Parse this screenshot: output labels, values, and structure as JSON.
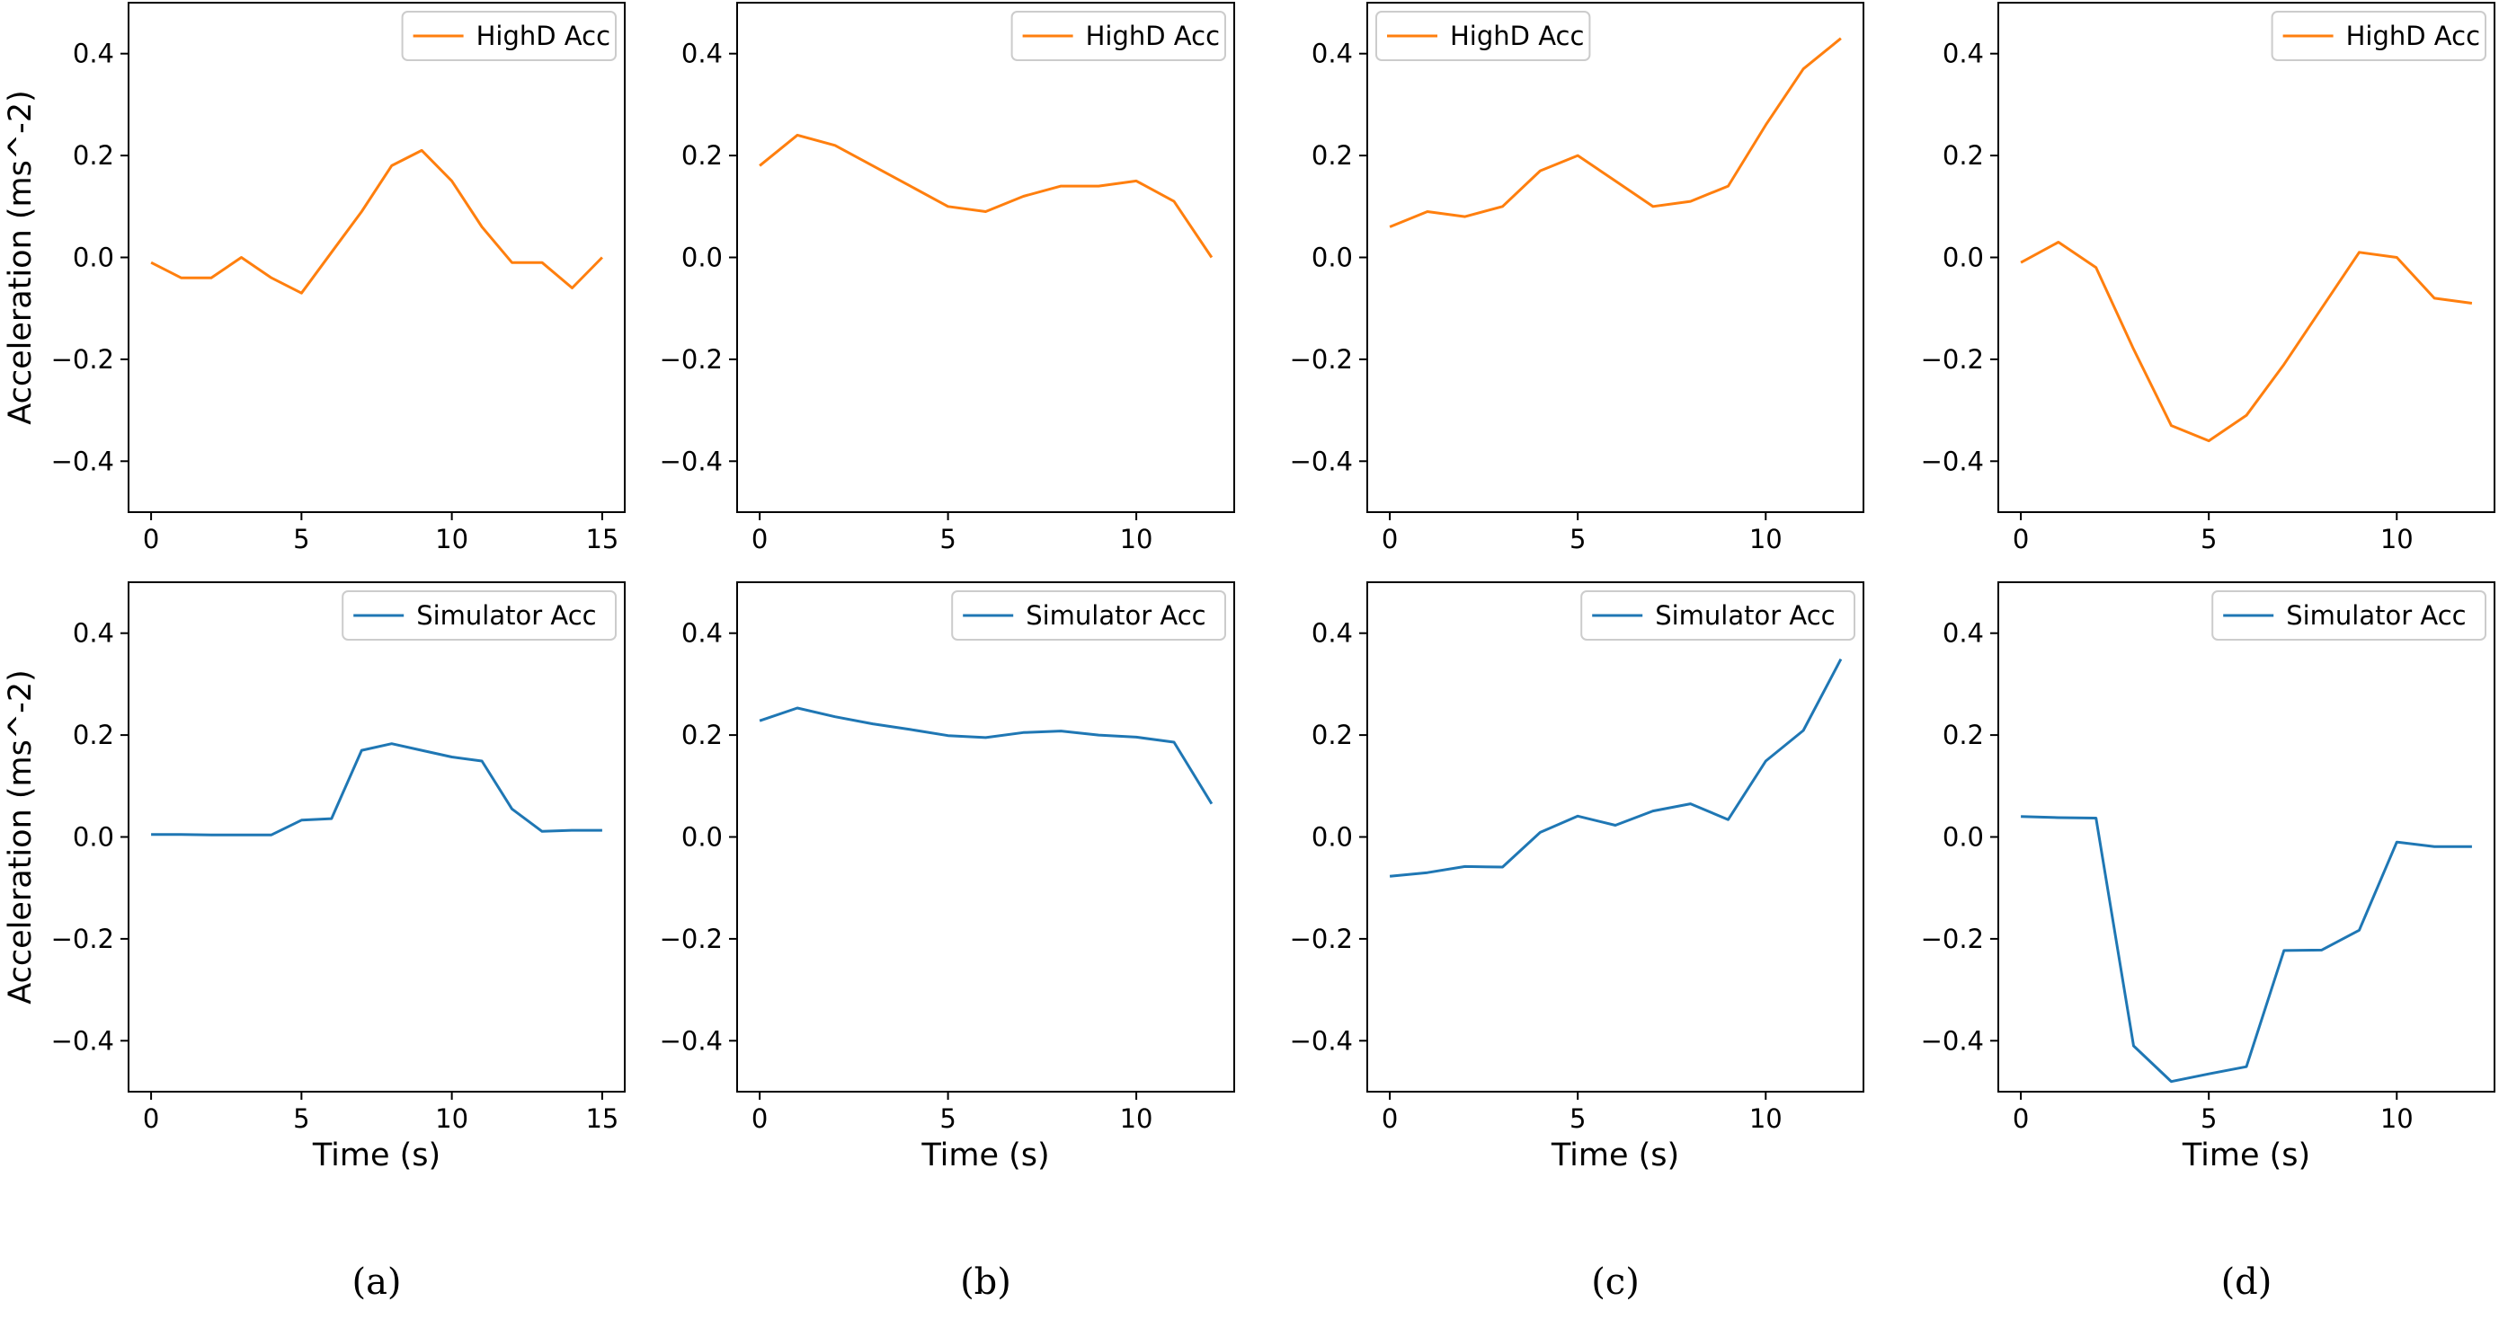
{
  "colors": {
    "highd": "#ff7f0e",
    "simulator": "#1f77b4",
    "axis": "#000000"
  },
  "captions": [
    "(a)",
    "(b)",
    "(c)",
    "(d)"
  ],
  "chart_data": [
    {
      "type": "line",
      "panel": "a",
      "row": "top",
      "series": [
        {
          "name": "HighD Acc",
          "x": [
            0,
            1,
            2,
            3,
            4,
            5,
            6,
            7,
            8,
            9,
            10,
            11,
            12,
            13,
            14,
            15
          ],
          "values": [
            -0.01,
            -0.04,
            -0.04,
            0.0,
            -0.04,
            -0.07,
            0.01,
            0.09,
            0.18,
            0.21,
            0.15,
            0.06,
            -0.01,
            -0.01,
            -0.06,
            0.0
          ]
        }
      ],
      "xlim": [
        -0.75,
        15.75
      ],
      "ylim": [
        -0.5,
        0.5
      ],
      "xticks": [
        0,
        5,
        10,
        15
      ],
      "yticks": [
        0.4,
        0.2,
        0.0,
        -0.2,
        -0.4
      ],
      "ytick_labels": [
        "0.4",
        "0.2",
        "0.0",
        "−0.2",
        "−0.4"
      ],
      "xlabel": "",
      "ylabel": "Acceleration (ms^-2)",
      "legend": "upper right"
    },
    {
      "type": "line",
      "panel": "b",
      "row": "top",
      "series": [
        {
          "name": "HighD Acc",
          "x": [
            0,
            1,
            2,
            3,
            4,
            5,
            6,
            7,
            8,
            9,
            10,
            11,
            12
          ],
          "values": [
            0.18,
            0.24,
            0.22,
            0.18,
            0.14,
            0.1,
            0.09,
            0.12,
            0.14,
            0.14,
            0.15,
            0.11,
            0.0
          ]
        }
      ],
      "xlim": [
        -0.6,
        12.6
      ],
      "ylim": [
        -0.5,
        0.5
      ],
      "xticks": [
        0,
        5,
        10
      ],
      "yticks": [
        0.4,
        0.2,
        0.0,
        -0.2,
        -0.4
      ],
      "ytick_labels": [
        "0.4",
        "0.2",
        "0.0",
        "−0.2",
        "−0.4"
      ],
      "xlabel": "",
      "ylabel": "",
      "legend": "upper right"
    },
    {
      "type": "line",
      "panel": "c",
      "row": "top",
      "series": [
        {
          "name": "HighD Acc",
          "x": [
            0,
            1,
            2,
            3,
            4,
            5,
            6,
            7,
            8,
            9,
            10,
            11,
            12
          ],
          "values": [
            0.06,
            0.09,
            0.08,
            0.1,
            0.17,
            0.2,
            0.15,
            0.1,
            0.11,
            0.14,
            0.26,
            0.37,
            0.43
          ]
        }
      ],
      "xlim": [
        -0.6,
        12.6
      ],
      "ylim": [
        -0.5,
        0.5
      ],
      "xticks": [
        0,
        5,
        10
      ],
      "yticks": [
        0.4,
        0.2,
        0.0,
        -0.2,
        -0.4
      ],
      "ytick_labels": [
        "0.4",
        "0.2",
        "0.0",
        "−0.2",
        "−0.4"
      ],
      "xlabel": "",
      "ylabel": "",
      "legend": "upper left"
    },
    {
      "type": "line",
      "panel": "d",
      "row": "top",
      "series": [
        {
          "name": "HighD Acc",
          "x": [
            0,
            1,
            2,
            3,
            4,
            5,
            6,
            7,
            8,
            9,
            10,
            11,
            12
          ],
          "values": [
            -0.01,
            0.03,
            -0.02,
            -0.18,
            -0.33,
            -0.36,
            -0.31,
            -0.21,
            -0.1,
            0.01,
            0.0,
            -0.08,
            -0.09
          ]
        }
      ],
      "xlim": [
        -0.6,
        12.6
      ],
      "ylim": [
        -0.5,
        0.5
      ],
      "xticks": [
        0,
        5,
        10
      ],
      "yticks": [
        0.4,
        0.2,
        0.0,
        -0.2,
        -0.4
      ],
      "ytick_labels": [
        "0.4",
        "0.2",
        "0.0",
        "−0.2",
        "−0.4"
      ],
      "xlabel": "",
      "ylabel": "",
      "legend": "upper right"
    },
    {
      "type": "line",
      "panel": "a",
      "row": "bottom",
      "series": [
        {
          "name": "Simulator Acc",
          "x": [
            0,
            1,
            2,
            3,
            4,
            5,
            6,
            7,
            8,
            9,
            10,
            11,
            12,
            13,
            14,
            15
          ],
          "values": [
            0.005,
            0.005,
            0.004,
            0.004,
            0.004,
            0.033,
            0.036,
            0.17,
            0.183,
            0.17,
            0.157,
            0.149,
            0.055,
            0.011,
            0.013,
            0.013
          ]
        }
      ],
      "xlim": [
        -0.75,
        15.75
      ],
      "ylim": [
        -0.5,
        0.5
      ],
      "xticks": [
        0,
        5,
        10,
        15
      ],
      "yticks": [
        0.4,
        0.2,
        0.0,
        -0.2,
        -0.4
      ],
      "ytick_labels": [
        "0.4",
        "0.2",
        "0.0",
        "−0.2",
        "−0.4"
      ],
      "xlabel": "Time (s)",
      "ylabel": "Acceleration (ms^-2)",
      "legend": "upper right"
    },
    {
      "type": "line",
      "panel": "b",
      "row": "bottom",
      "series": [
        {
          "name": "Simulator Acc",
          "x": [
            0,
            1,
            2,
            3,
            4,
            5,
            6,
            7,
            8,
            9,
            10,
            11,
            12
          ],
          "values": [
            0.228,
            0.253,
            0.236,
            0.222,
            0.211,
            0.199,
            0.195,
            0.205,
            0.208,
            0.2,
            0.196,
            0.186,
            0.065
          ]
        }
      ],
      "xlim": [
        -0.6,
        12.6
      ],
      "ylim": [
        -0.5,
        0.5
      ],
      "xticks": [
        0,
        5,
        10
      ],
      "yticks": [
        0.4,
        0.2,
        0.0,
        -0.2,
        -0.4
      ],
      "ytick_labels": [
        "0.4",
        "0.2",
        "0.0",
        "−0.2",
        "−0.4"
      ],
      "xlabel": "Time (s)",
      "ylabel": "",
      "legend": "upper right"
    },
    {
      "type": "line",
      "panel": "c",
      "row": "bottom",
      "series": [
        {
          "name": "Simulator Acc",
          "x": [
            0,
            1,
            2,
            3,
            4,
            5,
            6,
            7,
            8,
            9,
            10,
            11,
            12
          ],
          "values": [
            -0.077,
            -0.07,
            -0.058,
            -0.059,
            0.009,
            0.041,
            0.023,
            0.051,
            0.065,
            0.034,
            0.149,
            0.209,
            0.349
          ]
        }
      ],
      "xlim": [
        -0.6,
        12.6
      ],
      "ylim": [
        -0.5,
        0.5
      ],
      "xticks": [
        0,
        5,
        10
      ],
      "yticks": [
        0.4,
        0.2,
        0.0,
        -0.2,
        -0.4
      ],
      "ytick_labels": [
        "0.4",
        "0.2",
        "0.0",
        "−0.2",
        "−0.4"
      ],
      "xlabel": "Time (s)",
      "ylabel": "",
      "legend": "upper right"
    },
    {
      "type": "line",
      "panel": "d",
      "row": "bottom",
      "series": [
        {
          "name": "Simulator Acc",
          "x": [
            0,
            1,
            2,
            3,
            4,
            5,
            6,
            7,
            8,
            9,
            10,
            11,
            12
          ],
          "values": [
            0.04,
            0.038,
            0.037,
            -0.41,
            -0.48,
            -0.465,
            -0.451,
            -0.223,
            -0.222,
            -0.183,
            -0.01,
            -0.019,
            -0.019
          ]
        }
      ],
      "xlim": [
        -0.6,
        12.6
      ],
      "ylim": [
        -0.5,
        0.5
      ],
      "xticks": [
        0,
        5,
        10
      ],
      "yticks": [
        0.4,
        0.2,
        0.0,
        -0.2,
        -0.4
      ],
      "ytick_labels": [
        "0.4",
        "0.2",
        "0.0",
        "−0.2",
        "−0.4"
      ],
      "xlabel": "Time (s)",
      "ylabel": "",
      "legend": "upper right"
    }
  ]
}
